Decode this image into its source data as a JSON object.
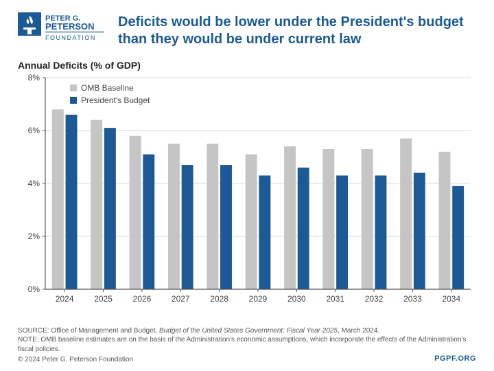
{
  "header": {
    "org_line1": "PETER G.",
    "org_line2": "PETERSON",
    "org_line3": "FOUNDATION",
    "title": "Deficits would be lower under the President's budget than they would be under current law"
  },
  "chart": {
    "type": "bar",
    "subtitle": "Annual Deficits (% of GDP)",
    "categories": [
      "2024",
      "2025",
      "2026",
      "2027",
      "2028",
      "2029",
      "2030",
      "2031",
      "2032",
      "2033",
      "2034"
    ],
    "series": [
      {
        "name": "OMB Baseline",
        "color": "#c5c5c5",
        "values": [
          6.8,
          6.4,
          5.8,
          5.5,
          5.5,
          5.1,
          5.4,
          5.3,
          5.3,
          5.7,
          5.2
        ]
      },
      {
        "name": "President's Budget",
        "color": "#1b5a96",
        "values": [
          6.6,
          6.1,
          5.1,
          4.7,
          4.7,
          4.3,
          4.6,
          4.3,
          4.3,
          4.4,
          3.9
        ]
      }
    ],
    "ylim": [
      0,
      8
    ],
    "ytick_step": 2,
    "ytick_labels": [
      "0%",
      "2%",
      "4%",
      "6%",
      "8%"
    ],
    "axis_color": "#555555",
    "grid_color": "#d9d9d9",
    "background_color": "#ffffff",
    "bar_group_gap": 0.35,
    "bar_inner_gap": 0.05,
    "label_fontsize": 12,
    "legend_marker_size": 10
  },
  "footer": {
    "source_prefix": "SOURCE: Office of Management and Budget, ",
    "source_italic": "Budget of the United States Government: Fiscal Year 2025",
    "source_suffix": ", March 2024.",
    "note": "NOTE: OMB baseline estimates are on the basis of the Administration's economic assumptions, which incorporate the effects of the Administration's fiscal policies.",
    "copyright": "© 2024 Peter G. Peterson Foundation",
    "link": "PGPF.ORG"
  },
  "colors": {
    "brand": "#1b5a96",
    "text": "#333333",
    "muted": "#888888"
  }
}
